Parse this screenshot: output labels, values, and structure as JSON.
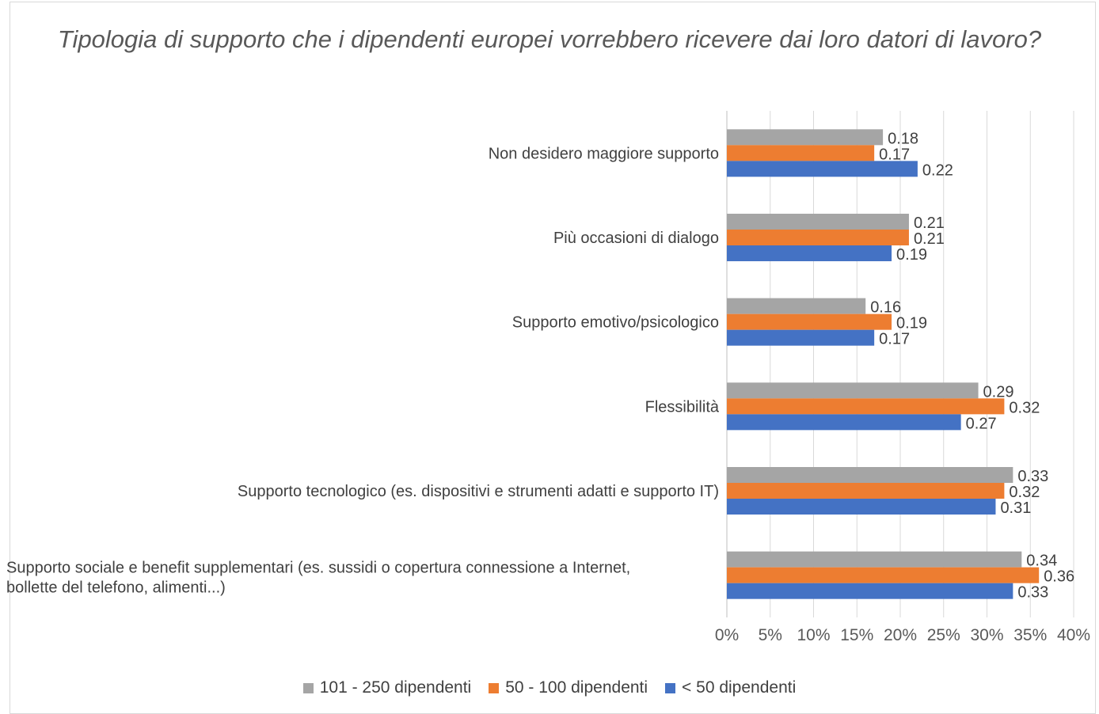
{
  "chart_data": {
    "type": "bar",
    "orientation": "horizontal",
    "title": "Tipologia di supporto che i dipendenti europei vorrebbero ricevere dai loro datori di lavoro?",
    "categories": [
      [
        "Non desidero maggiore supporto"
      ],
      [
        "Più occasioni di dialogo"
      ],
      [
        "Supporto emotivo/psicologico"
      ],
      [
        "Flessibilità"
      ],
      [
        "Supporto tecnologico (es. dispositivi e strumenti adatti e supporto IT)"
      ],
      [
        "Supporto sociale e benefit supplementari (es. sussidi o copertura connessione a Internet,",
        "bollette del telefono, alimenti...)"
      ]
    ],
    "series": [
      {
        "name": "101 - 250 dipendenti",
        "color": "#a5a5a5",
        "values": [
          0.18,
          0.21,
          0.16,
          0.29,
          0.33,
          0.34
        ]
      },
      {
        "name": "50 - 100 dipendenti",
        "color": "#ed7d31",
        "values": [
          0.17,
          0.21,
          0.19,
          0.32,
          0.32,
          0.36
        ]
      },
      {
        "name": "< 50 dipendenti",
        "color": "#4472c4",
        "values": [
          0.22,
          0.19,
          0.17,
          0.27,
          0.31,
          0.33
        ]
      }
    ],
    "xlim": [
      0,
      0.4
    ],
    "xticks": [
      "0%",
      "5%",
      "10%",
      "15%",
      "20%",
      "25%",
      "30%",
      "35%",
      "40%"
    ],
    "legend_position": "bottom",
    "grid": true
  }
}
